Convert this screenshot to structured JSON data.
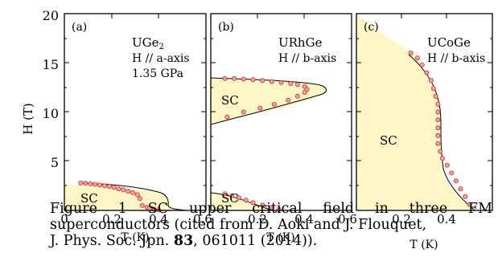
{
  "figure": {
    "y_axis_label": "H (T)",
    "y_ticks": [
      "20",
      "15",
      "10",
      "5"
    ],
    "x_ticks": [
      "0",
      "0.2",
      "0.4",
      "0.6"
    ],
    "x_axis_label": "T (K)",
    "fill_color": "#fff6c8",
    "marker_color": "#f5a0a0",
    "panels": [
      {
        "tag": "(a)",
        "material": "UGe",
        "material_sub": "2",
        "field_dir": "H // a-axis",
        "extra": "1.35 GPa",
        "sc_labels": [
          "SC"
        ]
      },
      {
        "tag": "(b)",
        "material": "URhGe",
        "material_sub": "",
        "field_dir": "H // b-axis",
        "extra": "",
        "sc_labels": [
          "SC",
          "SC"
        ]
      },
      {
        "tag": "(c)",
        "material": "UCoGe",
        "material_sub": "",
        "field_dir": "H // b-axis",
        "extra": "",
        "sc_labels": [
          "SC"
        ]
      }
    ]
  },
  "chart_data": [
    {
      "type": "scatter",
      "title": "(a) UGe2 H // a-axis 1.35 GPa",
      "xlabel": "T (K)",
      "ylabel": "H (T)",
      "xlim": [
        0,
        0.6
      ],
      "ylim": [
        0,
        20
      ],
      "series": [
        {
          "x": [
            0.07,
            0.09,
            0.11,
            0.13,
            0.15,
            0.17,
            0.19,
            0.21,
            0.23,
            0.25,
            0.27,
            0.29,
            0.31,
            0.32,
            0.33,
            0.35,
            0.36,
            0.38,
            0.4
          ],
          "y": [
            2.8,
            2.75,
            2.7,
            2.65,
            2.6,
            2.5,
            2.45,
            2.35,
            2.2,
            2.1,
            1.95,
            1.8,
            1.6,
            1.2,
            0.5,
            0.3,
            0.2,
            0.1,
            0.05
          ]
        }
      ]
    },
    {
      "type": "scatter",
      "title": "(b) URhGe H // b-axis",
      "xlabel": "T (K)",
      "ylabel": "H (T)",
      "xlim": [
        0,
        0.6
      ],
      "ylim": [
        0,
        20
      ],
      "series": [
        {
          "x": [
            0.06,
            0.1,
            0.14,
            0.18,
            0.22,
            0.26,
            0.3,
            0.34,
            0.37,
            0.4,
            0.41,
            0.4,
            0.37,
            0.33,
            0.27,
            0.21,
            0.14,
            0.07
          ],
          "y": [
            13.4,
            13.4,
            13.35,
            13.3,
            13.2,
            13.1,
            13.0,
            12.9,
            12.8,
            12.6,
            12.3,
            12.0,
            11.6,
            11.2,
            10.8,
            10.4,
            10.0,
            9.5
          ]
        },
        {
          "x": [
            0.06,
            0.09,
            0.12,
            0.15,
            0.18,
            0.22,
            0.26,
            0.29
          ],
          "y": [
            1.7,
            1.5,
            1.3,
            1.05,
            0.8,
            0.55,
            0.3,
            0.1
          ]
        }
      ]
    },
    {
      "type": "scatter",
      "title": "(c) UCoGe H // b-axis",
      "xlabel": "T (K)",
      "ylabel": "H (T)",
      "xlim": [
        0,
        0.6
      ],
      "ylim": [
        0,
        20
      ],
      "series": [
        {
          "x": [
            0.24,
            0.27,
            0.29,
            0.31,
            0.33,
            0.34,
            0.35,
            0.36,
            0.36,
            0.36,
            0.36,
            0.36,
            0.36,
            0.37,
            0.38,
            0.4,
            0.42,
            0.44,
            0.46,
            0.48,
            0.5
          ],
          "y": [
            16.0,
            15.5,
            14.8,
            14.0,
            13.2,
            12.4,
            11.6,
            10.8,
            10.0,
            9.2,
            8.4,
            7.6,
            6.8,
            6.0,
            5.3,
            4.6,
            3.8,
            3.0,
            2.2,
            1.4,
            0.6
          ]
        }
      ]
    }
  ],
  "caption": {
    "line1": "Figure 1 SC upper critical field in three FM",
    "line2": "superconductors (cited from D. Aoki and J. Flouquet,",
    "line3_prefix": "J. Phys. Soc. Jpn. ",
    "line3_volume": "83",
    "line3_suffix": ", 061011 (2014))."
  }
}
